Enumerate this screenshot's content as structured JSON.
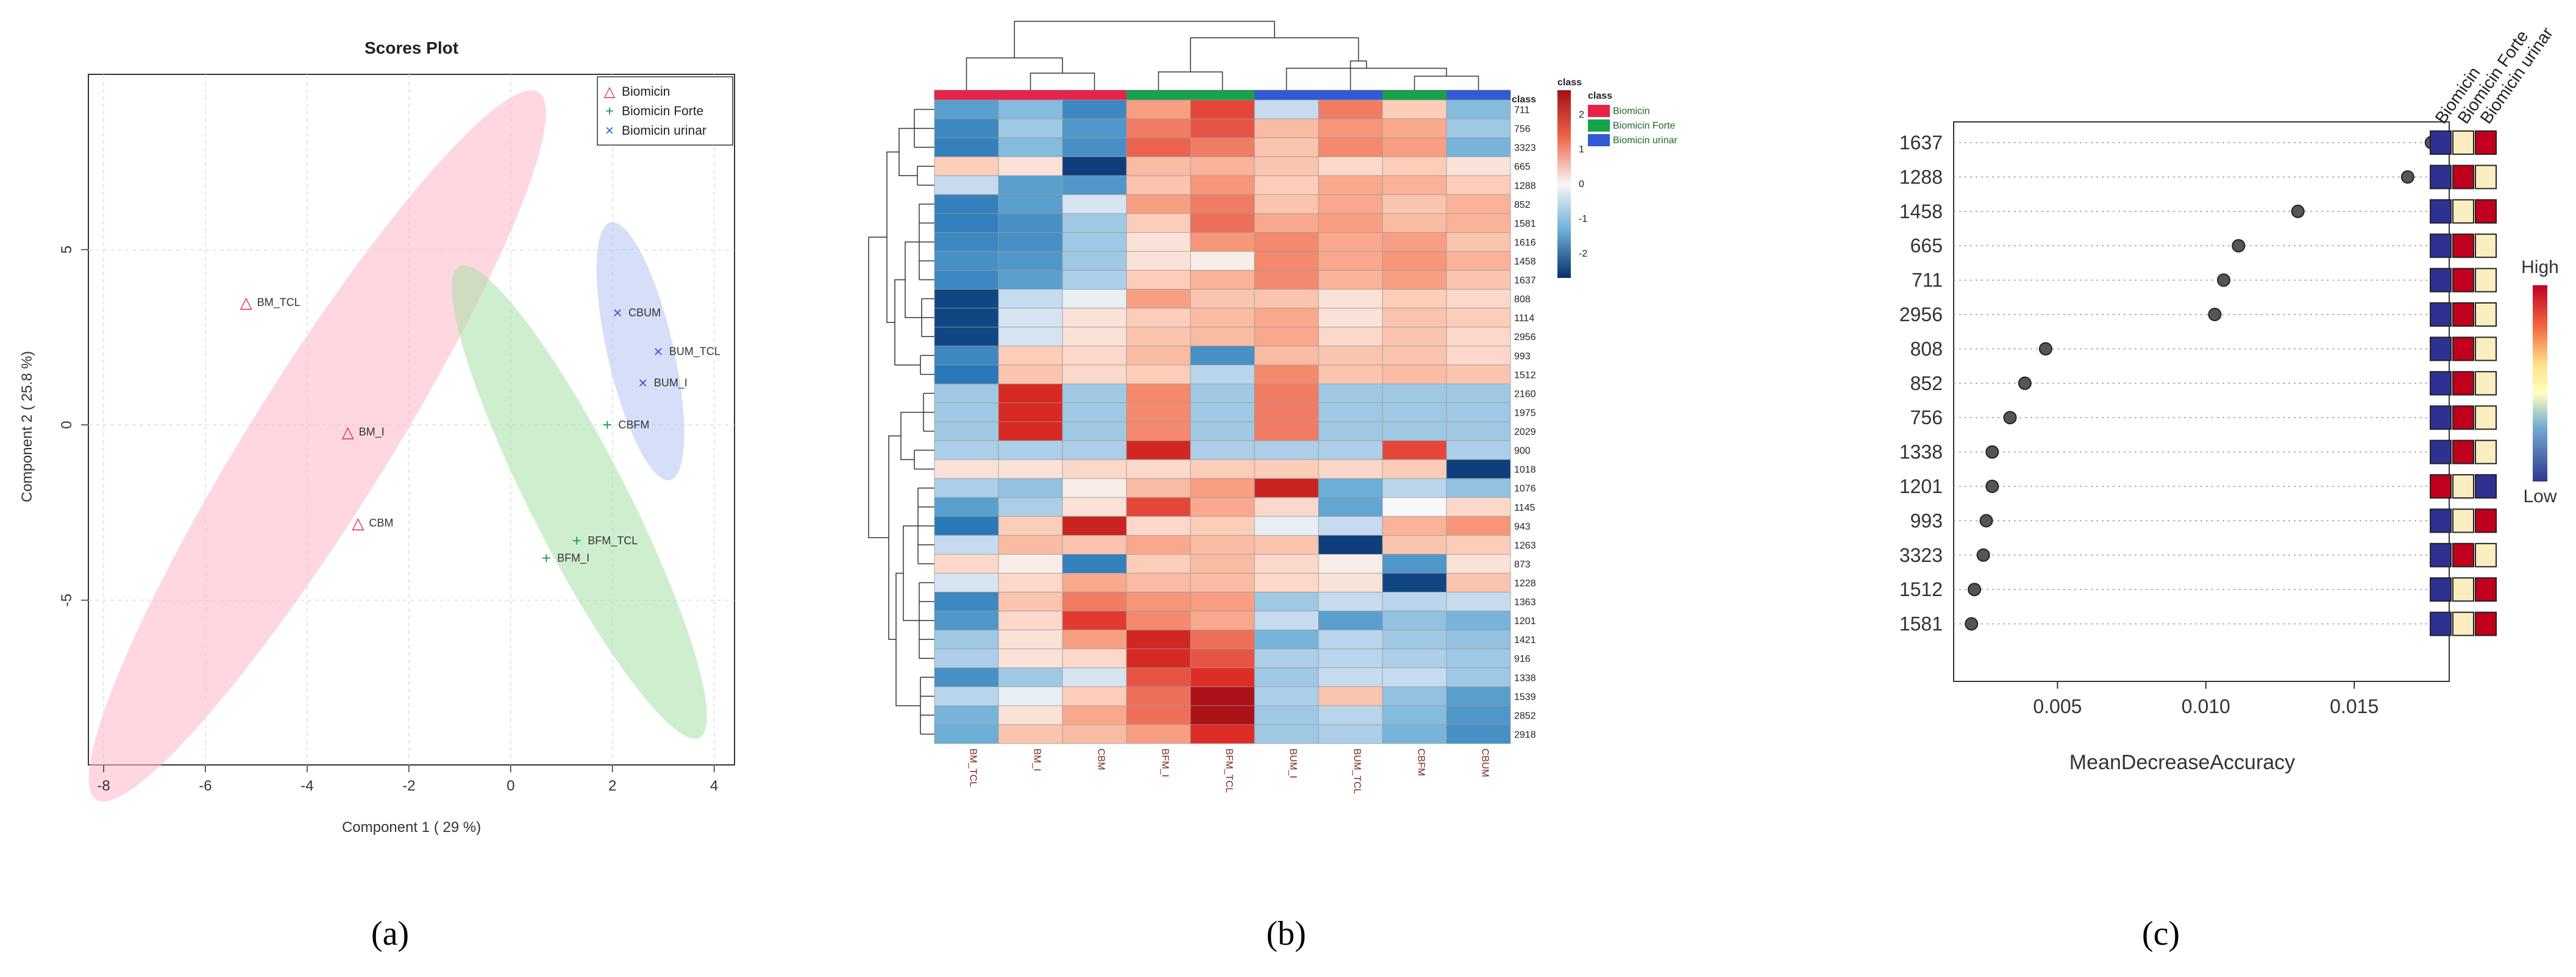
{
  "colors": {
    "biomicin": "#e8234a",
    "biomicin_forte": "#16a34a",
    "biomicin_urinar": "#2f5bd6",
    "ellipse_biomicin": "#ffb6c8",
    "ellipse_forte": "#a8e0a8",
    "ellipse_urinar": "#b6c2f0"
  },
  "panel_labels": [
    "(a)",
    "(b)",
    "(c)"
  ],
  "chart_data": [
    {
      "type": "scatter",
      "title": "Scores Plot",
      "xlabel": "Component 1 ( 29 %)",
      "ylabel": "Component 2 ( 25.8 %)",
      "xlim": [
        -8.3,
        4.4
      ],
      "ylim": [
        -9.7,
        10
      ],
      "xticks": [
        -8,
        -6,
        -4,
        -2,
        0,
        2,
        4
      ],
      "yticks": [
        -5,
        0,
        5
      ],
      "legend_position": "top-right",
      "series": [
        {
          "name": "Biomicin",
          "marker": "△",
          "points": [
            {
              "label": "BM_TCL",
              "x": -5.2,
              "y": 3.5
            },
            {
              "label": "BM_I",
              "x": -3.2,
              "y": -0.2
            },
            {
              "label": "CBM",
              "x": -3.0,
              "y": -2.8
            }
          ]
        },
        {
          "name": "Biomicin Forte",
          "marker": "+",
          "points": [
            {
              "label": "CBFM",
              "x": 1.9,
              "y": 0.0
            },
            {
              "label": "BFM_TCL",
              "x": 1.3,
              "y": -3.3
            },
            {
              "label": "BFM_I",
              "x": 0.7,
              "y": -3.8
            }
          ]
        },
        {
          "name": "Biomicin urinar",
          "marker": "×",
          "points": [
            {
              "label": "CBUM",
              "x": 2.1,
              "y": 3.2
            },
            {
              "label": "BUM_TCL",
              "x": 2.9,
              "y": 2.1
            },
            {
              "label": "BUM_I",
              "x": 2.6,
              "y": 1.2
            }
          ]
        }
      ],
      "ellipses": [
        {
          "group": "Biomicin",
          "cx": -3.8,
          "cy": -0.6,
          "rx": 8.2,
          "ry": 1.35,
          "angle_deg": -58
        },
        {
          "group": "Biomicin Forte",
          "cx": 1.35,
          "cy": -2.2,
          "rx": 5.2,
          "ry": 0.95,
          "angle_deg": 63
        },
        {
          "group": "Biomicin urinar",
          "cx": 2.55,
          "cy": 2.1,
          "rx": 2.6,
          "ry": 0.65,
          "angle_deg": 77
        }
      ]
    },
    {
      "type": "heatmap",
      "columns": [
        "BM_TCL",
        "BM_I",
        "CBM",
        "BFM_I",
        "BFM_TCL",
        "BUM_I",
        "BUM_TCL",
        "CBFM",
        "CBUM"
      ],
      "column_classes": [
        "Biomicin",
        "Biomicin",
        "Biomicin",
        "Biomicin Forte",
        "Biomicin Forte",
        "Biomicin urinar",
        "Biomicin urinar",
        "Biomicin Forte",
        "Biomicin urinar"
      ],
      "rows": [
        "711",
        "756",
        "3323",
        "665",
        "1288",
        "852",
        "1581",
        "1616",
        "1458",
        "1637",
        "808",
        "1114",
        "2956",
        "993",
        "1512",
        "2160",
        "1975",
        "2029",
        "900",
        "1018",
        "1076",
        "1145",
        "943",
        "1263",
        "873",
        "1228",
        "1363",
        "1201",
        "1421",
        "916",
        "1338",
        "1539",
        "2852",
        "2918"
      ],
      "values": [
        [
          -1.2,
          -0.8,
          -1.5,
          0.9,
          1.6,
          -0.3,
          1.2,
          0.4,
          -0.8
        ],
        [
          -1.5,
          -0.6,
          -1.3,
          1.2,
          1.5,
          0.6,
          1.0,
          0.8,
          -0.6
        ],
        [
          -1.6,
          -0.8,
          -1.4,
          1.4,
          1.2,
          0.5,
          1.1,
          0.9,
          -0.9
        ],
        [
          0.4,
          0.2,
          -2.5,
          0.6,
          0.7,
          0.5,
          0.3,
          0.4,
          0.2
        ],
        [
          -0.3,
          -1.2,
          -1.3,
          0.5,
          1.0,
          0.4,
          0.8,
          0.7,
          0.4
        ],
        [
          -1.6,
          -1.2,
          -0.2,
          0.9,
          1.2,
          0.5,
          0.8,
          0.5,
          0.7
        ],
        [
          -1.6,
          -1.4,
          -0.6,
          0.4,
          1.3,
          0.8,
          0.9,
          0.6,
          0.7
        ],
        [
          -1.5,
          -1.4,
          -0.6,
          0.2,
          1.0,
          1.1,
          0.8,
          0.9,
          0.5
        ],
        [
          -1.4,
          -1.3,
          -0.6,
          0.2,
          0.1,
          1.1,
          0.8,
          1.0,
          0.7
        ],
        [
          -1.5,
          -1.2,
          -0.5,
          0.4,
          0.7,
          1.1,
          0.7,
          0.9,
          0.5
        ],
        [
          -2.4,
          -0.3,
          -0.1,
          0.9,
          0.5,
          0.5,
          0.2,
          0.4,
          0.3
        ],
        [
          -2.4,
          -0.2,
          0.2,
          0.4,
          0.6,
          0.8,
          0.2,
          0.5,
          0.4
        ],
        [
          -2.4,
          -0.2,
          0.2,
          0.5,
          0.6,
          0.8,
          0.3,
          0.5,
          0.3
        ],
        [
          -1.5,
          0.4,
          0.3,
          0.6,
          -1.4,
          0.6,
          0.5,
          0.5,
          0.3
        ],
        [
          -1.7,
          0.5,
          0.3,
          0.4,
          -0.4,
          1.1,
          0.5,
          0.6,
          0.5
        ],
        [
          -0.6,
          1.9,
          -0.6,
          1.1,
          -0.6,
          1.2,
          -0.6,
          -0.6,
          -0.6
        ],
        [
          -0.6,
          1.9,
          -0.6,
          1.1,
          -0.6,
          1.2,
          -0.6,
          -0.6,
          -0.6
        ],
        [
          -0.6,
          1.9,
          -0.6,
          1.1,
          -0.6,
          1.2,
          -0.6,
          -0.6,
          -0.6
        ],
        [
          -0.5,
          -0.5,
          -0.5,
          2.0,
          -0.5,
          -0.5,
          -0.5,
          1.6,
          -0.5
        ],
        [
          0.2,
          0.2,
          0.3,
          0.3,
          0.4,
          0.4,
          0.3,
          0.4,
          -2.5
        ],
        [
          -0.5,
          -0.7,
          0.1,
          0.6,
          0.9,
          2.1,
          -1.0,
          -0.4,
          -0.7
        ],
        [
          -1.2,
          -0.5,
          0.2,
          1.6,
          0.8,
          0.3,
          -1.1,
          0.0,
          0.3
        ],
        [
          -1.7,
          0.4,
          2.1,
          0.3,
          0.4,
          -0.1,
          -0.3,
          0.7,
          1.0
        ],
        [
          -0.3,
          0.6,
          0.5,
          0.8,
          0.6,
          0.5,
          -2.5,
          0.5,
          0.4
        ],
        [
          0.3,
          0.1,
          -1.6,
          0.4,
          0.6,
          0.3,
          0.1,
          -1.3,
          0.2
        ],
        [
          -0.2,
          0.3,
          0.8,
          0.6,
          0.6,
          0.3,
          0.2,
          -2.4,
          0.5
        ],
        [
          -1.5,
          0.5,
          1.2,
          1.0,
          0.9,
          -0.6,
          -0.3,
          -0.4,
          -0.3
        ],
        [
          -1.3,
          0.3,
          1.7,
          1.1,
          0.8,
          -0.3,
          -1.2,
          -0.7,
          -0.9
        ],
        [
          -0.6,
          0.2,
          0.9,
          2.0,
          1.3,
          -0.9,
          -0.4,
          -0.6,
          -0.7
        ],
        [
          -0.5,
          0.2,
          0.3,
          1.9,
          1.5,
          -0.5,
          -0.4,
          -0.5,
          -0.6
        ],
        [
          -1.4,
          -0.6,
          -0.2,
          1.5,
          1.8,
          -0.6,
          -0.3,
          -0.3,
          -0.6
        ],
        [
          -0.4,
          -0.1,
          0.4,
          1.3,
          2.6,
          -0.5,
          0.5,
          -0.7,
          -1.2
        ],
        [
          -0.9,
          0.2,
          0.8,
          1.3,
          2.6,
          -0.6,
          -0.4,
          -0.8,
          -1.3
        ],
        [
          -1.0,
          0.5,
          0.6,
          0.9,
          1.8,
          -0.6,
          -0.5,
          -0.9,
          -1.4
        ]
      ],
      "color_scale": {
        "min": -2.7,
        "max": 2.7,
        "ticks": [
          2,
          1,
          0,
          -1,
          -2
        ],
        "title": "class"
      },
      "legend_title": "class",
      "legend_entries": [
        "Biomicin",
        "Biomicin Forte",
        "Biomicin urinar"
      ],
      "class_label": "class"
    },
    {
      "type": "scatter",
      "title": "",
      "xlabel": "MeanDecreaseAccuracy",
      "xlim": [
        0.0015,
        0.0182
      ],
      "xticks": [
        "0.005",
        "0.010",
        "0.015"
      ],
      "categories": [
        "1637",
        "1288",
        "1458",
        "665",
        "711",
        "2956",
        "808",
        "852",
        "756",
        "1338",
        "1201",
        "993",
        "3323",
        "1512",
        "1581"
      ],
      "values": [
        0.0176,
        0.0168,
        0.0131,
        0.0111,
        0.0106,
        0.0103,
        0.0046,
        0.0039,
        0.0034,
        0.0028,
        0.0028,
        0.0026,
        0.0025,
        0.0022,
        0.0021
      ],
      "heat_columns": [
        "Biomicin",
        "Biomicin Forte",
        "Biomicin urinar"
      ],
      "heat_levels": [
        [
          "low",
          "mid",
          "high"
        ],
        [
          "low",
          "high",
          "mid"
        ],
        [
          "low",
          "mid",
          "high"
        ],
        [
          "low",
          "high",
          "mid"
        ],
        [
          "low",
          "high",
          "mid"
        ],
        [
          "low",
          "high",
          "mid"
        ],
        [
          "low",
          "high",
          "mid"
        ],
        [
          "low",
          "high",
          "mid"
        ],
        [
          "low",
          "high",
          "mid"
        ],
        [
          "low",
          "high",
          "mid"
        ],
        [
          "high",
          "mid",
          "low"
        ],
        [
          "low",
          "mid",
          "high"
        ],
        [
          "low",
          "high",
          "mid"
        ],
        [
          "low",
          "mid",
          "high"
        ],
        [
          "low",
          "mid",
          "high"
        ]
      ],
      "legend": {
        "high": "High",
        "low": "Low"
      }
    }
  ]
}
